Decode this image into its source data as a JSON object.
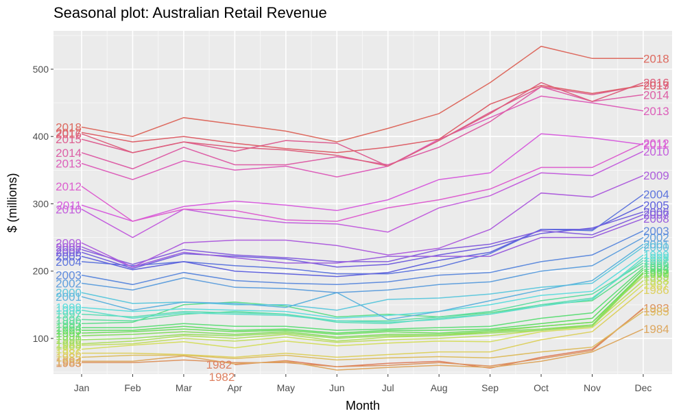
{
  "chart_data": {
    "type": "line",
    "title": "Seasonal plot: Australian Retail Revenue",
    "xlabel": "Month",
    "ylabel": "$ (millions)",
    "categories": [
      "Jan",
      "Feb",
      "Mar",
      "Apr",
      "May",
      "Jun",
      "Jul",
      "Aug",
      "Sep",
      "Oct",
      "Nov",
      "Dec"
    ],
    "ylim": [
      47,
      557
    ],
    "yticks": [
      100,
      200,
      300,
      400,
      500
    ],
    "grid": true,
    "legend": "none",
    "series": [
      {
        "name": "1982",
        "values": [
          null,
          null,
          null,
          61,
          67,
          58,
          63,
          66,
          56,
          72,
          84,
          144
        ],
        "label_ends": [
          "end",
          "start"
        ]
      },
      {
        "name": "1983",
        "values": [
          64,
          64,
          68,
          64,
          64,
          58,
          60,
          64,
          59,
          70,
          82,
          145
        ],
        "label_ends": [
          "start",
          "end"
        ]
      },
      {
        "name": "1984",
        "values": [
          66,
          66,
          74,
          62,
          66,
          53,
          57,
          60,
          57,
          66,
          80,
          114
        ],
        "label_ends": [
          "start",
          "end"
        ]
      },
      {
        "name": "1985",
        "values": [
          72,
          75,
          75,
          70,
          75,
          68,
          71,
          73,
          71,
          80,
          87,
          140
        ],
        "label_ends": [
          "start",
          "end"
        ]
      },
      {
        "name": "1986",
        "values": [
          78,
          78,
          76,
          72,
          78,
          72,
          76,
          80,
          80,
          98,
          110,
          172
        ],
        "label_ends": [
          "start",
          "end"
        ]
      },
      {
        "name": "1987",
        "values": [
          84,
          90,
          95,
          86,
          96,
          89,
          93,
          96,
          95,
          110,
          116,
          180
        ],
        "label_ends": [
          "start",
          "end"
        ]
      },
      {
        "name": "1988",
        "values": [
          90,
          92,
          100,
          96,
          102,
          94,
          98,
          100,
          104,
          112,
          120,
          186
        ],
        "label_ends": [
          "start",
          "end"
        ]
      },
      {
        "name": "1989",
        "values": [
          92,
          96,
          104,
          100,
          106,
          96,
          102,
          104,
          110,
          118,
          124,
          192
        ],
        "label_ends": [
          "start",
          "end"
        ]
      },
      {
        "name": "1990",
        "values": [
          98,
          100,
          106,
          104,
          108,
          100,
          104,
          104,
          108,
          112,
          118,
          196
        ],
        "label_ends": [
          "start",
          "end"
        ]
      },
      {
        "name": "1991",
        "values": [
          104,
          106,
          110,
          106,
          110,
          102,
          106,
          106,
          110,
          114,
          120,
          198
        ],
        "label_ends": [
          "start",
          "end"
        ]
      },
      {
        "name": "1992",
        "values": [
          108,
          110,
          114,
          110,
          112,
          106,
          110,
          108,
          112,
          118,
          124,
          198
        ],
        "label_ends": [
          "start",
          "end"
        ]
      },
      {
        "name": "1993",
        "values": [
          112,
          112,
          118,
          112,
          114,
          108,
          112,
          112,
          114,
          122,
          130,
          202
        ],
        "label_ends": [
          "start",
          "end"
        ]
      },
      {
        "name": "1994",
        "values": [
          116,
          116,
          122,
          118,
          118,
          112,
          114,
          116,
          118,
          130,
          138,
          205
        ],
        "label_ends": [
          "start",
          "end"
        ]
      },
      {
        "name": "1995",
        "values": [
          122,
          124,
          150,
          154,
          148,
          132,
          136,
          132,
          138,
          150,
          156,
          208
        ],
        "label_ends": [
          "start",
          "end"
        ]
      },
      {
        "name": "1996",
        "values": [
          128,
          126,
          136,
          140,
          136,
          126,
          126,
          132,
          140,
          156,
          166,
          212
        ],
        "label_ends": [
          "start",
          "end"
        ]
      },
      {
        "name": "1997",
        "values": [
          136,
          132,
          140,
          138,
          136,
          124,
          122,
          130,
          136,
          150,
          160,
          216
        ],
        "label_ends": [
          "start",
          "end"
        ]
      },
      {
        "name": "1998",
        "values": [
          142,
          130,
          138,
          136,
          134,
          126,
          124,
          128,
          136,
          148,
          158,
          220
        ],
        "label_ends": [
          "start",
          "end"
        ]
      },
      {
        "name": "1999",
        "values": [
          146,
          140,
          144,
          142,
          140,
          130,
          134,
          140,
          150,
          164,
          170,
          224
        ],
        "label_ends": [
          "start",
          "end"
        ]
      },
      {
        "name": "2000",
        "values": [
          168,
          152,
          154,
          150,
          150,
          142,
          158,
          160,
          166,
          176,
          182,
          236
        ],
        "label_ends": [
          "start",
          "end"
        ]
      },
      {
        "name": "2001",
        "values": [
          162,
          142,
          154,
          152,
          146,
          168,
          128,
          140,
          156,
          172,
          186,
          240
        ],
        "label_ends": [
          "start",
          "end"
        ]
      },
      {
        "name": "2002",
        "values": [
          182,
          172,
          190,
          176,
          174,
          168,
          172,
          180,
          184,
          200,
          208,
          250
        ],
        "label_ends": [
          "start",
          "end"
        ]
      },
      {
        "name": "2003",
        "values": [
          194,
          180,
          198,
          186,
          182,
          180,
          184,
          194,
          198,
          214,
          224,
          260
        ],
        "label_ends": [
          "start",
          "end"
        ]
      },
      {
        "name": "2004",
        "values": [
          214,
          208,
          214,
          208,
          204,
          196,
          196,
          206,
          226,
          262,
          260,
          314
        ],
        "label_ends": [
          "start",
          "end"
        ]
      },
      {
        "name": "2005",
        "values": [
          222,
          202,
          214,
          200,
          196,
          192,
          198,
          216,
          228,
          262,
          262,
          298
        ],
        "label_ends": [
          "start",
          "end"
        ]
      },
      {
        "name": "2006",
        "values": [
          228,
          204,
          226,
          222,
          218,
          206,
          210,
          224,
          236,
          256,
          264,
          288
        ],
        "label_ends": [
          "start",
          "end"
        ]
      },
      {
        "name": "2007",
        "values": [
          232,
          210,
          232,
          224,
          220,
          214,
          214,
          232,
          240,
          260,
          254,
          284
        ],
        "label_ends": [
          "start",
          "end"
        ]
      },
      {
        "name": "2008",
        "values": [
          236,
          206,
          228,
          220,
          212,
          212,
          222,
          222,
          222,
          250,
          250,
          278
        ],
        "label_ends": [
          "start",
          "end"
        ]
      },
      {
        "name": "2009",
        "values": [
          242,
          206,
          242,
          246,
          246,
          238,
          224,
          234,
          262,
          316,
          310,
          342
        ],
        "label_ends": [
          "start",
          "end"
        ]
      },
      {
        "name": "2010",
        "values": [
          292,
          250,
          292,
          280,
          272,
          270,
          258,
          294,
          312,
          346,
          342,
          378
        ],
        "label_ends": [
          "start",
          "end"
        ]
      },
      {
        "name": "2011",
        "values": [
          298,
          274,
          296,
          304,
          298,
          290,
          306,
          336,
          346,
          404,
          398,
          388
        ],
        "label_ends": [
          "start",
          "end"
        ]
      },
      {
        "name": "2012",
        "values": [
          326,
          274,
          292,
          290,
          276,
          274,
          294,
          306,
          322,
          354,
          354,
          390
        ],
        "label_ends": [
          "start",
          "end"
        ]
      },
      {
        "name": "2013",
        "values": [
          360,
          336,
          364,
          350,
          356,
          340,
          356,
          396,
          428,
          460,
          450,
          438
        ],
        "label_ends": [
          "start",
          "end"
        ]
      },
      {
        "name": "2014",
        "values": [
          376,
          352,
          384,
          358,
          358,
          370,
          358,
          384,
          422,
          474,
          452,
          462
        ],
        "label_ends": [
          "start",
          "end"
        ]
      },
      {
        "name": "2015",
        "values": [
          396,
          376,
          392,
          378,
          394,
          390,
          356,
          394,
          436,
          474,
          462,
          476
        ],
        "label_ends": [
          "start",
          "end"
        ]
      },
      {
        "name": "2016",
        "values": [
          404,
          376,
          392,
          384,
          380,
          372,
          356,
          394,
          434,
          480,
          452,
          480
        ],
        "label_ends": [
          "start",
          "end"
        ]
      },
      {
        "name": "2017",
        "values": [
          406,
          392,
          400,
          390,
          382,
          376,
          384,
          396,
          448,
          476,
          464,
          476
        ],
        "label_ends": [
          "start",
          "end"
        ]
      },
      {
        "name": "2018",
        "values": [
          414,
          400,
          428,
          418,
          408,
          392,
          412,
          434,
          480,
          534,
          516,
          516
        ],
        "label_ends": [
          "start",
          "end"
        ]
      }
    ]
  }
}
